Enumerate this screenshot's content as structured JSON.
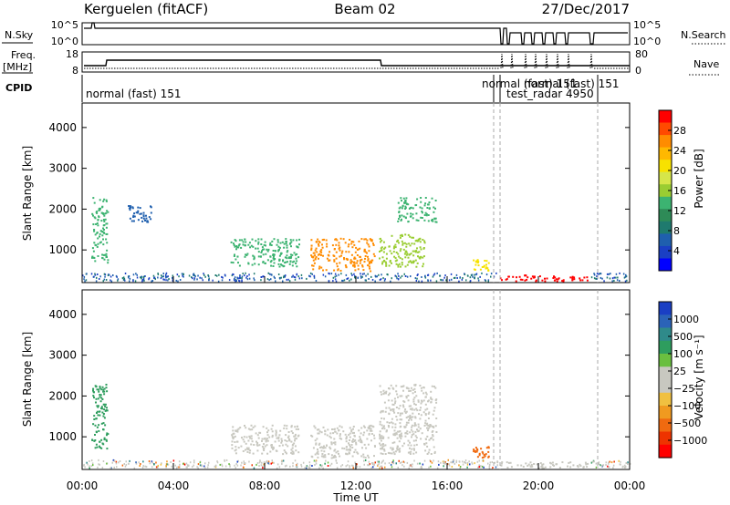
{
  "header": {
    "station": "Kerguelen (fitACF)",
    "beam": "Beam 02",
    "date": "27/Dec/2017"
  },
  "panels": {
    "nsky_label": "N.Sky",
    "nsky_ticks": [
      "10^5",
      "10^0"
    ],
    "nsearch_label": "N.Search",
    "nsearch_ticks": [
      "10^5",
      "10^0"
    ],
    "freq_label": "Freq.",
    "freq_unit": "[MHz]",
    "freq_ticks": [
      "18",
      "8"
    ],
    "nave_label": "Nave",
    "nave_ticks": [
      "80",
      "0"
    ],
    "cpid_label": "CPID",
    "cpid_entries": [
      "normal (fast) 151",
      "normal (fast) 151",
      "test_radar 4950",
      "normal (fast) 151"
    ]
  },
  "chart_data": [
    {
      "type": "heatmap",
      "name": "power",
      "ylabel": "Slant Range [km]",
      "yticks": [
        1000,
        2000,
        3000,
        4000
      ],
      "ylim": [
        200,
        4600
      ],
      "xlim": [
        0,
        24
      ],
      "grid": false,
      "colorbar": {
        "label": "Power [dB]",
        "ticks": [
          "28",
          "24",
          "20",
          "16",
          "12",
          "8",
          "4"
        ],
        "colors": [
          "#ff0000",
          "#ff4a00",
          "#ff8c00",
          "#ffb800",
          "#f7e200",
          "#d6e64a",
          "#9acd32",
          "#3cb371",
          "#2e8b57",
          "#1f7a6e",
          "#1f5fae",
          "#1a3fc4",
          "#0000ff"
        ]
      },
      "features": [
        {
          "t_start": 0.4,
          "t_end": 1.1,
          "range_start": 700,
          "range_end": 2300,
          "level_db": 14
        },
        {
          "t_start": 2.0,
          "t_end": 3.0,
          "range_start": 1700,
          "range_end": 2100,
          "level_db": 8
        },
        {
          "t_start": 6.5,
          "t_end": 9.5,
          "range_start": 600,
          "range_end": 1300,
          "level_db": 14
        },
        {
          "t_start": 10.0,
          "t_end": 12.8,
          "range_start": 500,
          "range_end": 1300,
          "level_db": 24
        },
        {
          "t_start": 13.0,
          "t_end": 15.0,
          "range_start": 600,
          "range_end": 1400,
          "level_db": 16
        },
        {
          "t_start": 13.8,
          "t_end": 15.5,
          "range_start": 1700,
          "range_end": 2300,
          "level_db": 14
        },
        {
          "t_start": 17.1,
          "t_end": 17.8,
          "range_start": 500,
          "range_end": 800,
          "level_db": 20
        },
        {
          "t_start": 18.3,
          "t_end": 22.2,
          "range_start": 250,
          "range_end": 400,
          "level_db": 28
        }
      ]
    },
    {
      "type": "heatmap",
      "name": "velocity",
      "ylabel": "Slant Range [km]",
      "xlabel": "Time UT",
      "xticks": [
        "00:00",
        "04:00",
        "08:00",
        "12:00",
        "16:00",
        "20:00",
        "00:00"
      ],
      "yticks": [
        1000,
        2000,
        3000,
        4000
      ],
      "ylim": [
        200,
        4600
      ],
      "xlim": [
        0,
        24
      ],
      "grid": false,
      "colorbar": {
        "label": "Velocity [m s⁻¹]",
        "ticks": [
          "1000",
          "500",
          "100",
          "25",
          "−25",
          "−100",
          "−500",
          "−1000"
        ],
        "colors": [
          "#1a3fc4",
          "#2b63b8",
          "#2f8a8a",
          "#2e9d5e",
          "#6abf40",
          "#c8c8c0",
          "#c8c8c0",
          "#f0c040",
          "#f09a20",
          "#f06a10",
          "#ee3300",
          "#ff0000"
        ]
      },
      "features": [
        {
          "t_start": 0.4,
          "t_end": 1.1,
          "range_start": 700,
          "range_end": 2300,
          "velocity": 150
        },
        {
          "t_start": 6.5,
          "t_end": 9.5,
          "range_start": 600,
          "range_end": 1300,
          "velocity": 0
        },
        {
          "t_start": 10.0,
          "t_end": 12.8,
          "range_start": 500,
          "range_end": 1300,
          "velocity": 0
        },
        {
          "t_start": 13.0,
          "t_end": 15.5,
          "range_start": 600,
          "range_end": 2300,
          "velocity": 0
        },
        {
          "t_start": 17.1,
          "t_end": 17.8,
          "range_start": 500,
          "range_end": 800,
          "velocity": -300
        },
        {
          "t_start": 18.3,
          "t_end": 22.2,
          "range_start": 250,
          "range_end": 400,
          "velocity": 0
        }
      ]
    }
  ]
}
